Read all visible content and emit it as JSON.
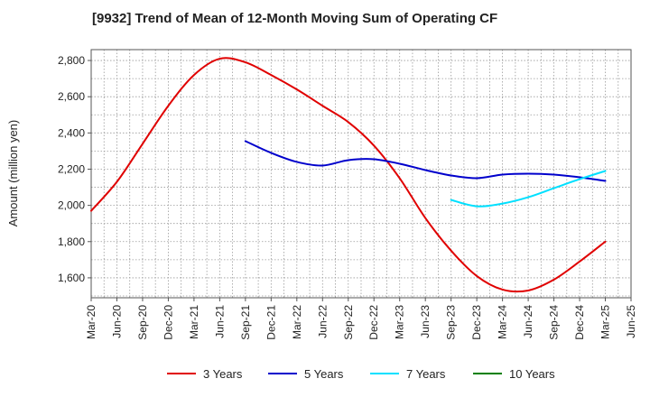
{
  "chart_data": {
    "type": "line",
    "title": "[9932]  Trend of Mean of 12-Month Moving Sum of Operating CF",
    "xlabel": "",
    "ylabel": "Amount (million yen)",
    "ylim": [
      1490,
      2860
    ],
    "yticks": [
      1600,
      1800,
      2000,
      2200,
      2400,
      2600,
      2800
    ],
    "ytick_labels": [
      "1,600",
      "1,800",
      "2,000",
      "2,200",
      "2,400",
      "2,600",
      "2,800"
    ],
    "categories": [
      "Mar-20",
      "Jun-20",
      "Sep-20",
      "Dec-20",
      "Mar-21",
      "Jun-21",
      "Sep-21",
      "Dec-21",
      "Mar-22",
      "Jun-22",
      "Sep-22",
      "Dec-22",
      "Mar-23",
      "Jun-23",
      "Sep-23",
      "Dec-23",
      "Mar-24",
      "Jun-24",
      "Sep-24",
      "Dec-24",
      "Mar-25",
      "Jun-25"
    ],
    "grid": true,
    "legend_position": "bottom",
    "series": [
      {
        "name": "3 Years",
        "color": "#e00000",
        "values": [
          1970,
          2130,
          2340,
          2550,
          2720,
          2810,
          2790,
          2720,
          2640,
          2550,
          2460,
          2330,
          2150,
          1930,
          1750,
          1610,
          1535,
          1530,
          1590,
          1690,
          1800,
          null
        ]
      },
      {
        "name": "5 Years",
        "color": "#0000cc",
        "values": [
          null,
          null,
          null,
          null,
          null,
          null,
          2355,
          2290,
          2240,
          2220,
          2250,
          2255,
          2230,
          2195,
          2165,
          2150,
          2170,
          2175,
          2170,
          2155,
          2135,
          null
        ]
      },
      {
        "name": "7 Years",
        "color": "#00e0ff",
        "values": [
          null,
          null,
          null,
          null,
          null,
          null,
          null,
          null,
          null,
          null,
          null,
          null,
          null,
          null,
          2030,
          1995,
          2010,
          2045,
          2095,
          2145,
          2190,
          null
        ]
      },
      {
        "name": "10 Years",
        "color": "#008000",
        "values": [
          null,
          null,
          null,
          null,
          null,
          null,
          null,
          null,
          null,
          null,
          null,
          null,
          null,
          null,
          null,
          null,
          null,
          null,
          null,
          null,
          null,
          null
        ]
      }
    ]
  }
}
